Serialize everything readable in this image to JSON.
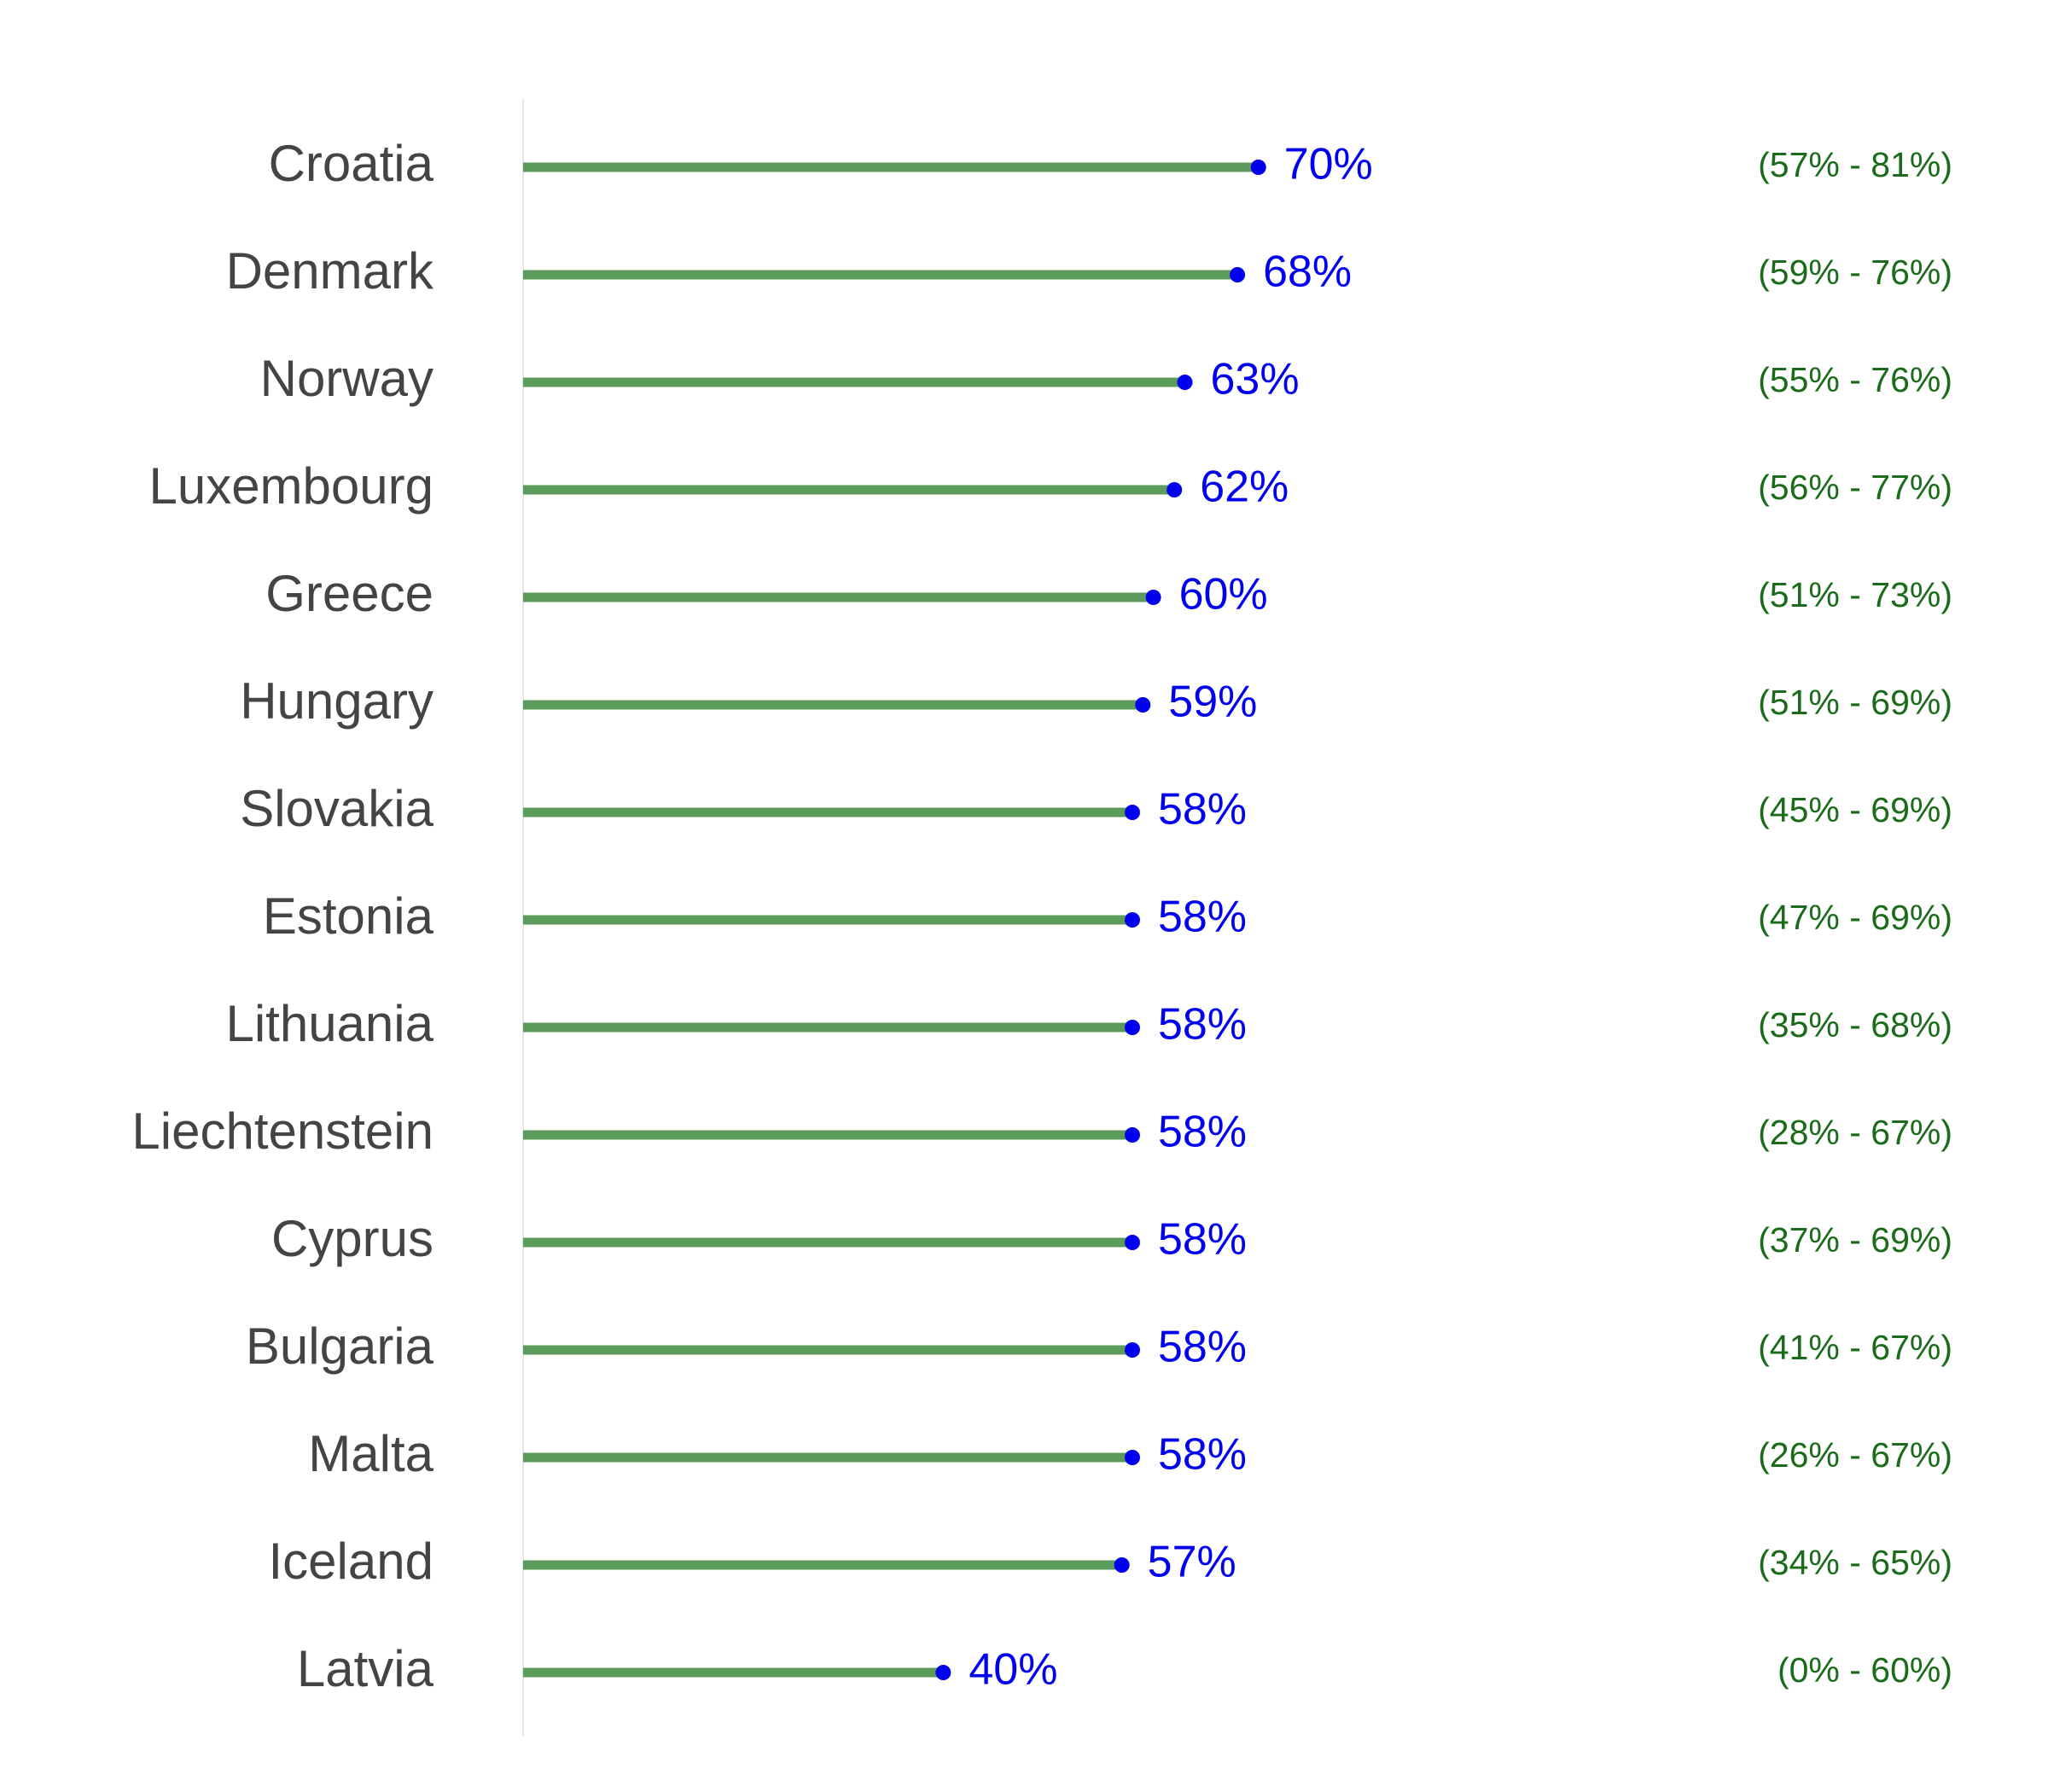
{
  "chart_data": {
    "type": "lollipop",
    "categories": [
      "Croatia",
      "Denmark",
      "Norway",
      "Luxembourg",
      "Greece",
      "Hungary",
      "Slovakia",
      "Estonia",
      "Lithuania",
      "Liechtenstein",
      "Cyprus",
      "Bulgaria",
      "Malta",
      "Iceland",
      "Latvia"
    ],
    "values": [
      70,
      68,
      63,
      62,
      60,
      59,
      58,
      58,
      58,
      58,
      58,
      58,
      58,
      57,
      40
    ],
    "value_labels": [
      "70%",
      "68%",
      "63%",
      "62%",
      "60%",
      "59%",
      "58%",
      "58%",
      "58%",
      "58%",
      "58%",
      "58%",
      "58%",
      "57%",
      "40%"
    ],
    "interval_labels": [
      "(57% - 81%)",
      "(59% - 76%)",
      "(55% - 76%)",
      "(56% - 77%)",
      "(51% - 73%)",
      "(51% - 69%)",
      "(45% - 69%)",
      "(47% - 69%)",
      "(35% - 68%)",
      "(28% - 67%)",
      "(37% - 69%)",
      "(41% - 67%)",
      "(26% - 67%)",
      "(34% - 65%)",
      "(0% - 60%)"
    ],
    "color": "#5b9b5b",
    "marker_color": "#0000ee",
    "label_color": "#0000ee",
    "interval_color": "#1a6b1a",
    "xlim": [
      0,
      100
    ]
  }
}
